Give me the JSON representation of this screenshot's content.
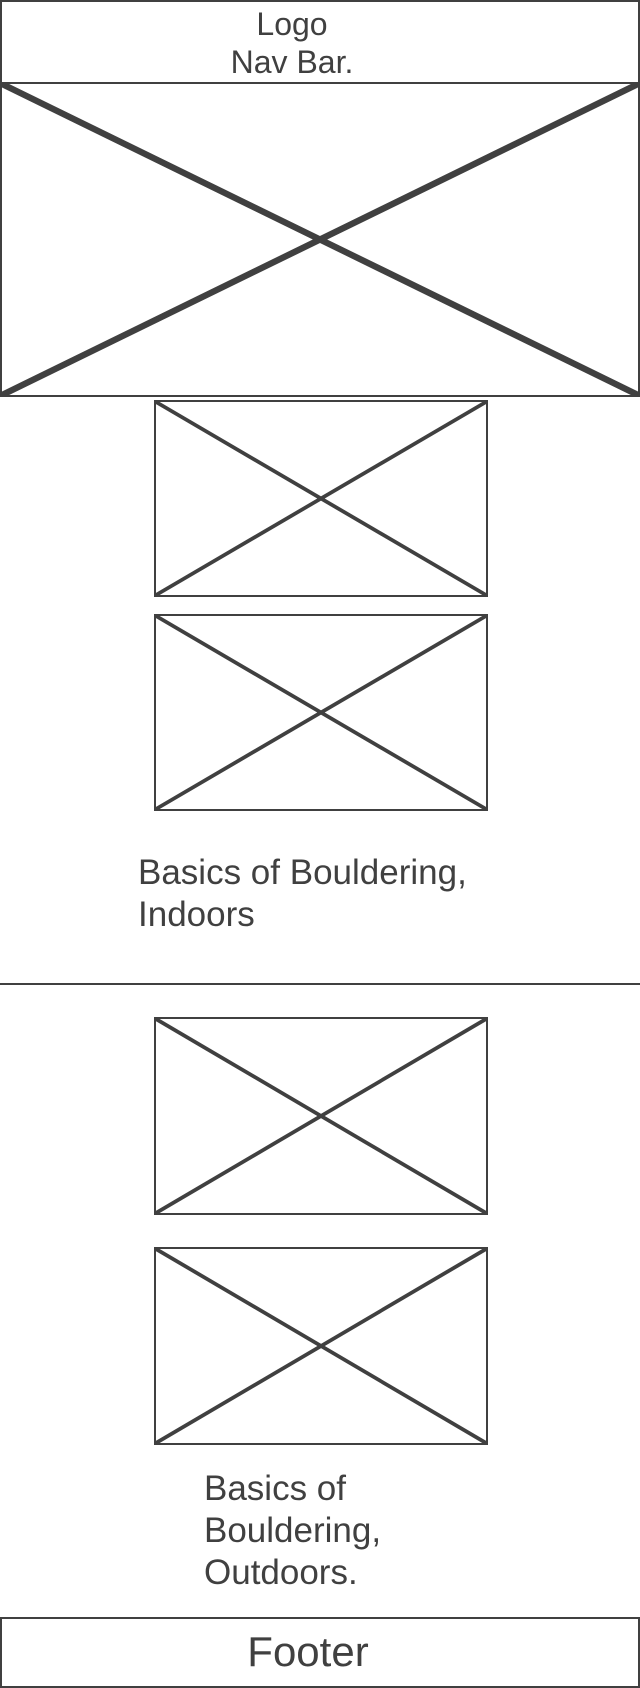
{
  "header": {
    "logo_label": "Logo",
    "nav_label": "Nav Bar."
  },
  "sections": [
    {
      "caption": "Basics of Bouldering,\nIndoors"
    },
    {
      "caption": "Basics of\nBouldering,\nOutdoors."
    }
  ],
  "footer": {
    "label": "Footer"
  }
}
